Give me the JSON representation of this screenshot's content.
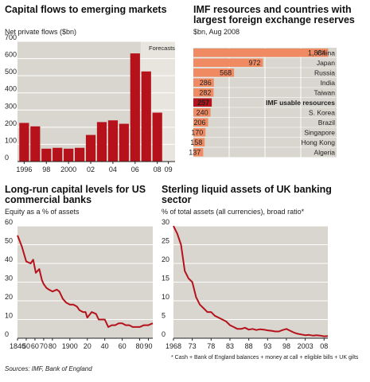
{
  "colors": {
    "red": "#b5121b",
    "panel_bg": "#d9d6cf",
    "shade_bg": "#e8e5de",
    "grid": "#ffffff",
    "bar_light": "#ef8a62",
    "bar_dark": "#b5121b",
    "line": "#b5121b"
  },
  "chart_data": [
    {
      "type": "bar",
      "title": "Capital flows to emerging markets",
      "subtitle": "Net private flows ($bn)",
      "annotation": "Forecasts",
      "forecast_from": 2007,
      "ylim": [
        0,
        700
      ],
      "yticks": [
        "0",
        "100",
        "200",
        "300",
        "400",
        "500",
        "600",
        "700"
      ],
      "xtick_labels": [
        {
          "x": 1996,
          "label": "1996"
        },
        {
          "x": 1998,
          "label": "98"
        },
        {
          "x": 2000,
          "label": "2000"
        },
        {
          "x": 2002,
          "label": "02"
        },
        {
          "x": 2004,
          "label": "04"
        },
        {
          "x": 2006,
          "label": "06"
        },
        {
          "x": 2008,
          "label": "08"
        },
        {
          "x": 2009,
          "label": "09"
        }
      ],
      "categories": [
        1996,
        1997,
        1998,
        1999,
        2000,
        2001,
        2002,
        2003,
        2004,
        2005,
        2006,
        2007,
        2008,
        2009
      ],
      "values": [
        225,
        205,
        75,
        80,
        75,
        80,
        155,
        230,
        240,
        220,
        630,
        525,
        285,
        0
      ],
      "grid": true
    },
    {
      "type": "bar",
      "orientation": "horizontal",
      "title": "IMF resources and countries with largest foreign exchange reserves",
      "subtitle": "$bn, Aug 2008",
      "xlim": [
        0,
        2000
      ],
      "grid": true,
      "categories": [
        "China",
        "Japan",
        "Russia",
        "India",
        "Taiwan",
        "IMF usable resources",
        "S. Korea",
        "Brazil",
        "Singapore",
        "Hong Kong",
        "Algeria"
      ],
      "values": [
        1884,
        972,
        568,
        286,
        282,
        257,
        240,
        206,
        170,
        158,
        137
      ],
      "value_labels": [
        "1,884",
        "972",
        "568",
        "286",
        "282",
        "257",
        "240",
        "206",
        "170",
        "158",
        "137"
      ],
      "highlight": "IMF usable resources"
    },
    {
      "type": "line",
      "title": "Long-run capital levels for US commercial banks",
      "subtitle": "Equity as a % of assets",
      "ylim": [
        0,
        60
      ],
      "yticks": [
        "0",
        "10",
        "20",
        "30",
        "40",
        "50",
        "60"
      ],
      "xlim": [
        1840,
        1995
      ],
      "xtick_labels": [
        {
          "x": 1840,
          "label": "1840"
        },
        {
          "x": 1850,
          "label": "50"
        },
        {
          "x": 1860,
          "label": "60"
        },
        {
          "x": 1870,
          "label": "70"
        },
        {
          "x": 1880,
          "label": "80"
        },
        {
          "x": 1900,
          "label": "1900"
        },
        {
          "x": 1920,
          "label": "20"
        },
        {
          "x": 1940,
          "label": "40"
        },
        {
          "x": 1960,
          "label": "60"
        },
        {
          "x": 1980,
          "label": "80"
        },
        {
          "x": 1990,
          "label": "90"
        }
      ],
      "x": [
        1840,
        1845,
        1850,
        1855,
        1858,
        1861,
        1865,
        1868,
        1870,
        1873,
        1876,
        1880,
        1885,
        1888,
        1892,
        1896,
        1900,
        1904,
        1908,
        1911,
        1915,
        1918,
        1920,
        1925,
        1930,
        1933,
        1936,
        1940,
        1944,
        1948,
        1952,
        1956,
        1960,
        1964,
        1968,
        1972,
        1976,
        1980,
        1985,
        1990,
        1995
      ],
      "y": [
        55,
        49,
        41,
        40,
        42,
        35,
        37,
        31,
        29,
        27,
        26,
        25,
        26,
        25,
        21,
        19,
        18,
        18,
        17,
        15,
        14,
        14,
        11,
        14,
        13,
        10,
        10,
        10,
        6,
        7,
        7,
        8,
        8,
        7,
        7,
        6,
        6,
        6,
        7,
        7,
        8
      ],
      "grid": true
    },
    {
      "type": "line",
      "title": "Sterling liquid assets of UK banking sector",
      "subtitle": "% of total assets (all currencies), broad ratio*",
      "ylim": [
        0,
        30
      ],
      "yticks": [
        "0",
        "5",
        "10",
        "15",
        "20",
        "25",
        "30"
      ],
      "xlim": [
        1968,
        2009
      ],
      "xtick_labels": [
        {
          "x": 1968,
          "label": "1968"
        },
        {
          "x": 1973,
          "label": "73"
        },
        {
          "x": 1978,
          "label": "78"
        },
        {
          "x": 1983,
          "label": "83"
        },
        {
          "x": 1988,
          "label": "88"
        },
        {
          "x": 1993,
          "label": "93"
        },
        {
          "x": 1998,
          "label": "98"
        },
        {
          "x": 2003,
          "label": "2003"
        },
        {
          "x": 2008,
          "label": "08"
        }
      ],
      "x": [
        1968,
        1969,
        1970,
        1971,
        1972,
        1973,
        1974,
        1975,
        1976,
        1977,
        1978,
        1979,
        1980,
        1981,
        1982,
        1983,
        1984,
        1985,
        1986,
        1987,
        1988,
        1989,
        1990,
        1991,
        1992,
        1993,
        1994,
        1995,
        1996,
        1997,
        1998,
        1999,
        2000,
        2001,
        2002,
        2003,
        2004,
        2005,
        2006,
        2007,
        2008,
        2009
      ],
      "y": [
        30,
        28,
        25,
        18,
        16,
        15,
        11,
        9,
        8,
        7,
        7,
        6,
        5.5,
        5,
        4.5,
        3.5,
        3,
        2.5,
        2.5,
        2.8,
        2.3,
        2.5,
        2.2,
        2.4,
        2.3,
        2.1,
        2.0,
        1.8,
        1.8,
        2.2,
        2.5,
        2.0,
        1.5,
        1.2,
        1.0,
        0.8,
        0.9,
        0.7,
        0.8,
        0.7,
        0.5,
        0.6
      ],
      "footnote": "* Cash + Bank of England balances + money at call + eligible bills + UK gilts",
      "grid": true
    }
  ],
  "sources": "Sources: IMF, Bank of England"
}
